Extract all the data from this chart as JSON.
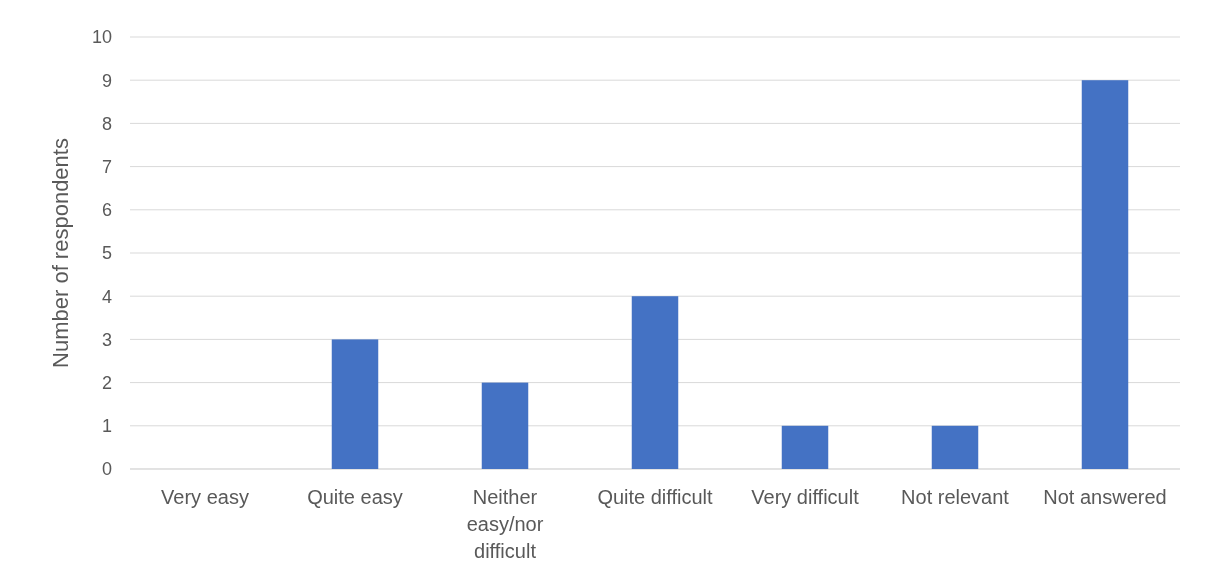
{
  "chart_data": {
    "type": "bar",
    "categories": [
      "Very easy",
      "Quite easy",
      "Neither easy/nor difficult",
      "Quite difficult",
      "Very difficult",
      "Not relevant",
      "Not answered"
    ],
    "values": [
      0,
      3,
      2,
      4,
      1,
      1,
      9
    ],
    "color": "#4472c4",
    "ylabel": "Number of respondents",
    "ylim": [
      0,
      10
    ],
    "yticks": [
      0,
      1,
      2,
      3,
      4,
      5,
      6,
      7,
      8,
      9,
      10
    ],
    "grid": "y"
  }
}
